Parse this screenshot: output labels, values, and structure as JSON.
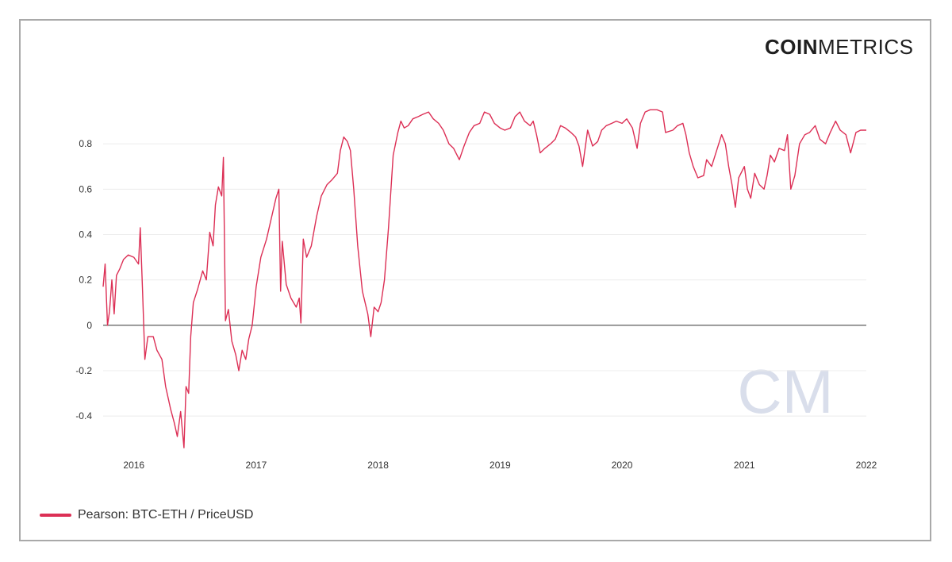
{
  "brand": {
    "part1": "COIN",
    "part2": "METRICS"
  },
  "watermark": "CM",
  "colors": {
    "series": "#dc2f55",
    "grid": "#ececec",
    "zero_line": "#333333",
    "axis_text": "#333333",
    "watermark": "#d9deeb",
    "frame": "#a9a9a9"
  },
  "chart_data": {
    "type": "line",
    "title": "",
    "xlabel": "",
    "ylabel": "",
    "ylim": [
      -0.55,
      1.0
    ],
    "xlim": [
      "2015-10-01",
      "2022-01-01"
    ],
    "grid": true,
    "legend": "bottom-left",
    "x_ticks": [
      "2016",
      "2017",
      "2018",
      "2019",
      "2020",
      "2021",
      "2022"
    ],
    "y_ticks": [
      {
        "v": 0.8,
        "label": "0.8"
      },
      {
        "v": 0.6,
        "label": "0.6"
      },
      {
        "v": 0.4,
        "label": "0.4"
      },
      {
        "v": 0.2,
        "label": "0.2"
      },
      {
        "v": 0.0,
        "label": "0"
      },
      {
        "v": -0.2,
        "label": "-0.2"
      },
      {
        "v": -0.4,
        "label": "-0.4"
      }
    ],
    "series": [
      {
        "name": "Pearson: BTC-ETH / PriceUSD",
        "points": [
          [
            "2015-10-01",
            0.17
          ],
          [
            "2015-10-07",
            0.27
          ],
          [
            "2015-10-14",
            0.0
          ],
          [
            "2015-10-20",
            0.06
          ],
          [
            "2015-10-27",
            0.2
          ],
          [
            "2015-11-03",
            0.05
          ],
          [
            "2015-11-10",
            0.22
          ],
          [
            "2015-11-20",
            0.25
          ],
          [
            "2015-12-01",
            0.29
          ],
          [
            "2015-12-15",
            0.31
          ],
          [
            "2016-01-01",
            0.3
          ],
          [
            "2016-01-15",
            0.27
          ],
          [
            "2016-01-20",
            0.43
          ],
          [
            "2016-01-27",
            0.15
          ],
          [
            "2016-02-03",
            -0.15
          ],
          [
            "2016-02-12",
            -0.05
          ],
          [
            "2016-02-28",
            -0.05
          ],
          [
            "2016-03-10",
            -0.11
          ],
          [
            "2016-03-25",
            -0.15
          ],
          [
            "2016-04-05",
            -0.27
          ],
          [
            "2016-04-20",
            -0.37
          ],
          [
            "2016-05-01",
            -0.43
          ],
          [
            "2016-05-10",
            -0.49
          ],
          [
            "2016-05-20",
            -0.38
          ],
          [
            "2016-05-30",
            -0.54
          ],
          [
            "2016-06-05",
            -0.27
          ],
          [
            "2016-06-13",
            -0.3
          ],
          [
            "2016-06-19",
            -0.05
          ],
          [
            "2016-06-27",
            0.1
          ],
          [
            "2016-07-10",
            0.16
          ],
          [
            "2016-07-25",
            0.24
          ],
          [
            "2016-08-05",
            0.2
          ],
          [
            "2016-08-15",
            0.41
          ],
          [
            "2016-08-25",
            0.35
          ],
          [
            "2016-09-01",
            0.53
          ],
          [
            "2016-09-10",
            0.61
          ],
          [
            "2016-09-20",
            0.57
          ],
          [
            "2016-09-25",
            0.74
          ],
          [
            "2016-10-01",
            0.02
          ],
          [
            "2016-10-10",
            0.07
          ],
          [
            "2016-10-20",
            -0.07
          ],
          [
            "2016-11-01",
            -0.13
          ],
          [
            "2016-11-10",
            -0.2
          ],
          [
            "2016-11-20",
            -0.11
          ],
          [
            "2016-12-01",
            -0.15
          ],
          [
            "2016-12-10",
            -0.06
          ],
          [
            "2016-12-20",
            0.0
          ],
          [
            "2017-01-01",
            0.17
          ],
          [
            "2017-01-15",
            0.3
          ],
          [
            "2017-02-01",
            0.38
          ],
          [
            "2017-02-15",
            0.47
          ],
          [
            "2017-03-01",
            0.56
          ],
          [
            "2017-03-10",
            0.6
          ],
          [
            "2017-03-15",
            0.15
          ],
          [
            "2017-03-20",
            0.37
          ],
          [
            "2017-04-01",
            0.18
          ],
          [
            "2017-04-15",
            0.12
          ],
          [
            "2017-05-01",
            0.08
          ],
          [
            "2017-05-10",
            0.12
          ],
          [
            "2017-05-15",
            0.01
          ],
          [
            "2017-05-22",
            0.38
          ],
          [
            "2017-06-01",
            0.3
          ],
          [
            "2017-06-15",
            0.35
          ],
          [
            "2017-07-01",
            0.48
          ],
          [
            "2017-07-15",
            0.57
          ],
          [
            "2017-08-01",
            0.62
          ],
          [
            "2017-08-15",
            0.64
          ],
          [
            "2017-09-01",
            0.67
          ],
          [
            "2017-09-10",
            0.77
          ],
          [
            "2017-09-20",
            0.83
          ],
          [
            "2017-10-01",
            0.81
          ],
          [
            "2017-10-10",
            0.77
          ],
          [
            "2017-10-20",
            0.6
          ],
          [
            "2017-11-01",
            0.35
          ],
          [
            "2017-11-15",
            0.15
          ],
          [
            "2017-12-01",
            0.05
          ],
          [
            "2017-12-10",
            -0.05
          ],
          [
            "2017-12-20",
            0.08
          ],
          [
            "2018-01-01",
            0.06
          ],
          [
            "2018-01-10",
            0.1
          ],
          [
            "2018-01-20",
            0.2
          ],
          [
            "2018-02-01",
            0.43
          ],
          [
            "2018-02-15",
            0.75
          ],
          [
            "2018-03-01",
            0.85
          ],
          [
            "2018-03-10",
            0.9
          ],
          [
            "2018-03-20",
            0.87
          ],
          [
            "2018-04-01",
            0.88
          ],
          [
            "2018-04-15",
            0.91
          ],
          [
            "2018-05-01",
            0.92
          ],
          [
            "2018-05-15",
            0.93
          ],
          [
            "2018-06-01",
            0.94
          ],
          [
            "2018-06-15",
            0.91
          ],
          [
            "2018-07-01",
            0.89
          ],
          [
            "2018-07-15",
            0.86
          ],
          [
            "2018-08-01",
            0.8
          ],
          [
            "2018-08-15",
            0.78
          ],
          [
            "2018-09-01",
            0.73
          ],
          [
            "2018-09-15",
            0.79
          ],
          [
            "2018-10-01",
            0.85
          ],
          [
            "2018-10-15",
            0.88
          ],
          [
            "2018-11-01",
            0.89
          ],
          [
            "2018-11-15",
            0.94
          ],
          [
            "2018-12-01",
            0.93
          ],
          [
            "2018-12-15",
            0.89
          ],
          [
            "2019-01-01",
            0.87
          ],
          [
            "2019-01-15",
            0.86
          ],
          [
            "2019-02-01",
            0.87
          ],
          [
            "2019-02-15",
            0.92
          ],
          [
            "2019-03-01",
            0.94
          ],
          [
            "2019-03-15",
            0.9
          ],
          [
            "2019-04-01",
            0.88
          ],
          [
            "2019-04-10",
            0.9
          ],
          [
            "2019-04-20",
            0.84
          ],
          [
            "2019-05-01",
            0.76
          ],
          [
            "2019-05-15",
            0.78
          ],
          [
            "2019-06-01",
            0.8
          ],
          [
            "2019-06-15",
            0.82
          ],
          [
            "2019-07-01",
            0.88
          ],
          [
            "2019-07-15",
            0.87
          ],
          [
            "2019-08-01",
            0.85
          ],
          [
            "2019-08-15",
            0.83
          ],
          [
            "2019-08-25",
            0.79
          ],
          [
            "2019-09-05",
            0.7
          ],
          [
            "2019-09-20",
            0.86
          ],
          [
            "2019-10-05",
            0.79
          ],
          [
            "2019-10-20",
            0.81
          ],
          [
            "2019-11-01",
            0.86
          ],
          [
            "2019-11-15",
            0.88
          ],
          [
            "2019-12-01",
            0.89
          ],
          [
            "2019-12-15",
            0.9
          ],
          [
            "2020-01-01",
            0.89
          ],
          [
            "2020-01-15",
            0.91
          ],
          [
            "2020-02-01",
            0.87
          ],
          [
            "2020-02-15",
            0.78
          ],
          [
            "2020-02-25",
            0.89
          ],
          [
            "2020-03-10",
            0.94
          ],
          [
            "2020-03-25",
            0.95
          ],
          [
            "2020-04-15",
            0.95
          ],
          [
            "2020-05-01",
            0.94
          ],
          [
            "2020-05-10",
            0.85
          ],
          [
            "2020-06-01",
            0.86
          ],
          [
            "2020-06-15",
            0.88
          ],
          [
            "2020-07-01",
            0.89
          ],
          [
            "2020-07-10",
            0.84
          ],
          [
            "2020-07-20",
            0.76
          ],
          [
            "2020-08-01",
            0.7
          ],
          [
            "2020-08-15",
            0.65
          ],
          [
            "2020-09-01",
            0.66
          ],
          [
            "2020-09-10",
            0.73
          ],
          [
            "2020-09-25",
            0.7
          ],
          [
            "2020-10-10",
            0.77
          ],
          [
            "2020-10-25",
            0.84
          ],
          [
            "2020-11-05",
            0.8
          ],
          [
            "2020-11-15",
            0.7
          ],
          [
            "2020-11-25",
            0.62
          ],
          [
            "2020-12-05",
            0.52
          ],
          [
            "2020-12-15",
            0.65
          ],
          [
            "2021-01-01",
            0.7
          ],
          [
            "2021-01-10",
            0.6
          ],
          [
            "2021-01-20",
            0.56
          ],
          [
            "2021-02-01",
            0.67
          ],
          [
            "2021-02-15",
            0.62
          ],
          [
            "2021-03-01",
            0.6
          ],
          [
            "2021-03-10",
            0.66
          ],
          [
            "2021-03-20",
            0.75
          ],
          [
            "2021-04-01",
            0.72
          ],
          [
            "2021-04-15",
            0.78
          ],
          [
            "2021-05-01",
            0.77
          ],
          [
            "2021-05-10",
            0.84
          ],
          [
            "2021-05-20",
            0.6
          ],
          [
            "2021-06-01",
            0.66
          ],
          [
            "2021-06-15",
            0.8
          ],
          [
            "2021-07-01",
            0.84
          ],
          [
            "2021-07-15",
            0.85
          ],
          [
            "2021-08-01",
            0.88
          ],
          [
            "2021-08-15",
            0.82
          ],
          [
            "2021-09-01",
            0.8
          ],
          [
            "2021-09-15",
            0.85
          ],
          [
            "2021-10-01",
            0.9
          ],
          [
            "2021-10-15",
            0.86
          ],
          [
            "2021-11-01",
            0.84
          ],
          [
            "2021-11-15",
            0.76
          ],
          [
            "2021-12-01",
            0.85
          ],
          [
            "2021-12-15",
            0.86
          ],
          [
            "2022-01-01",
            0.86
          ]
        ]
      }
    ]
  }
}
